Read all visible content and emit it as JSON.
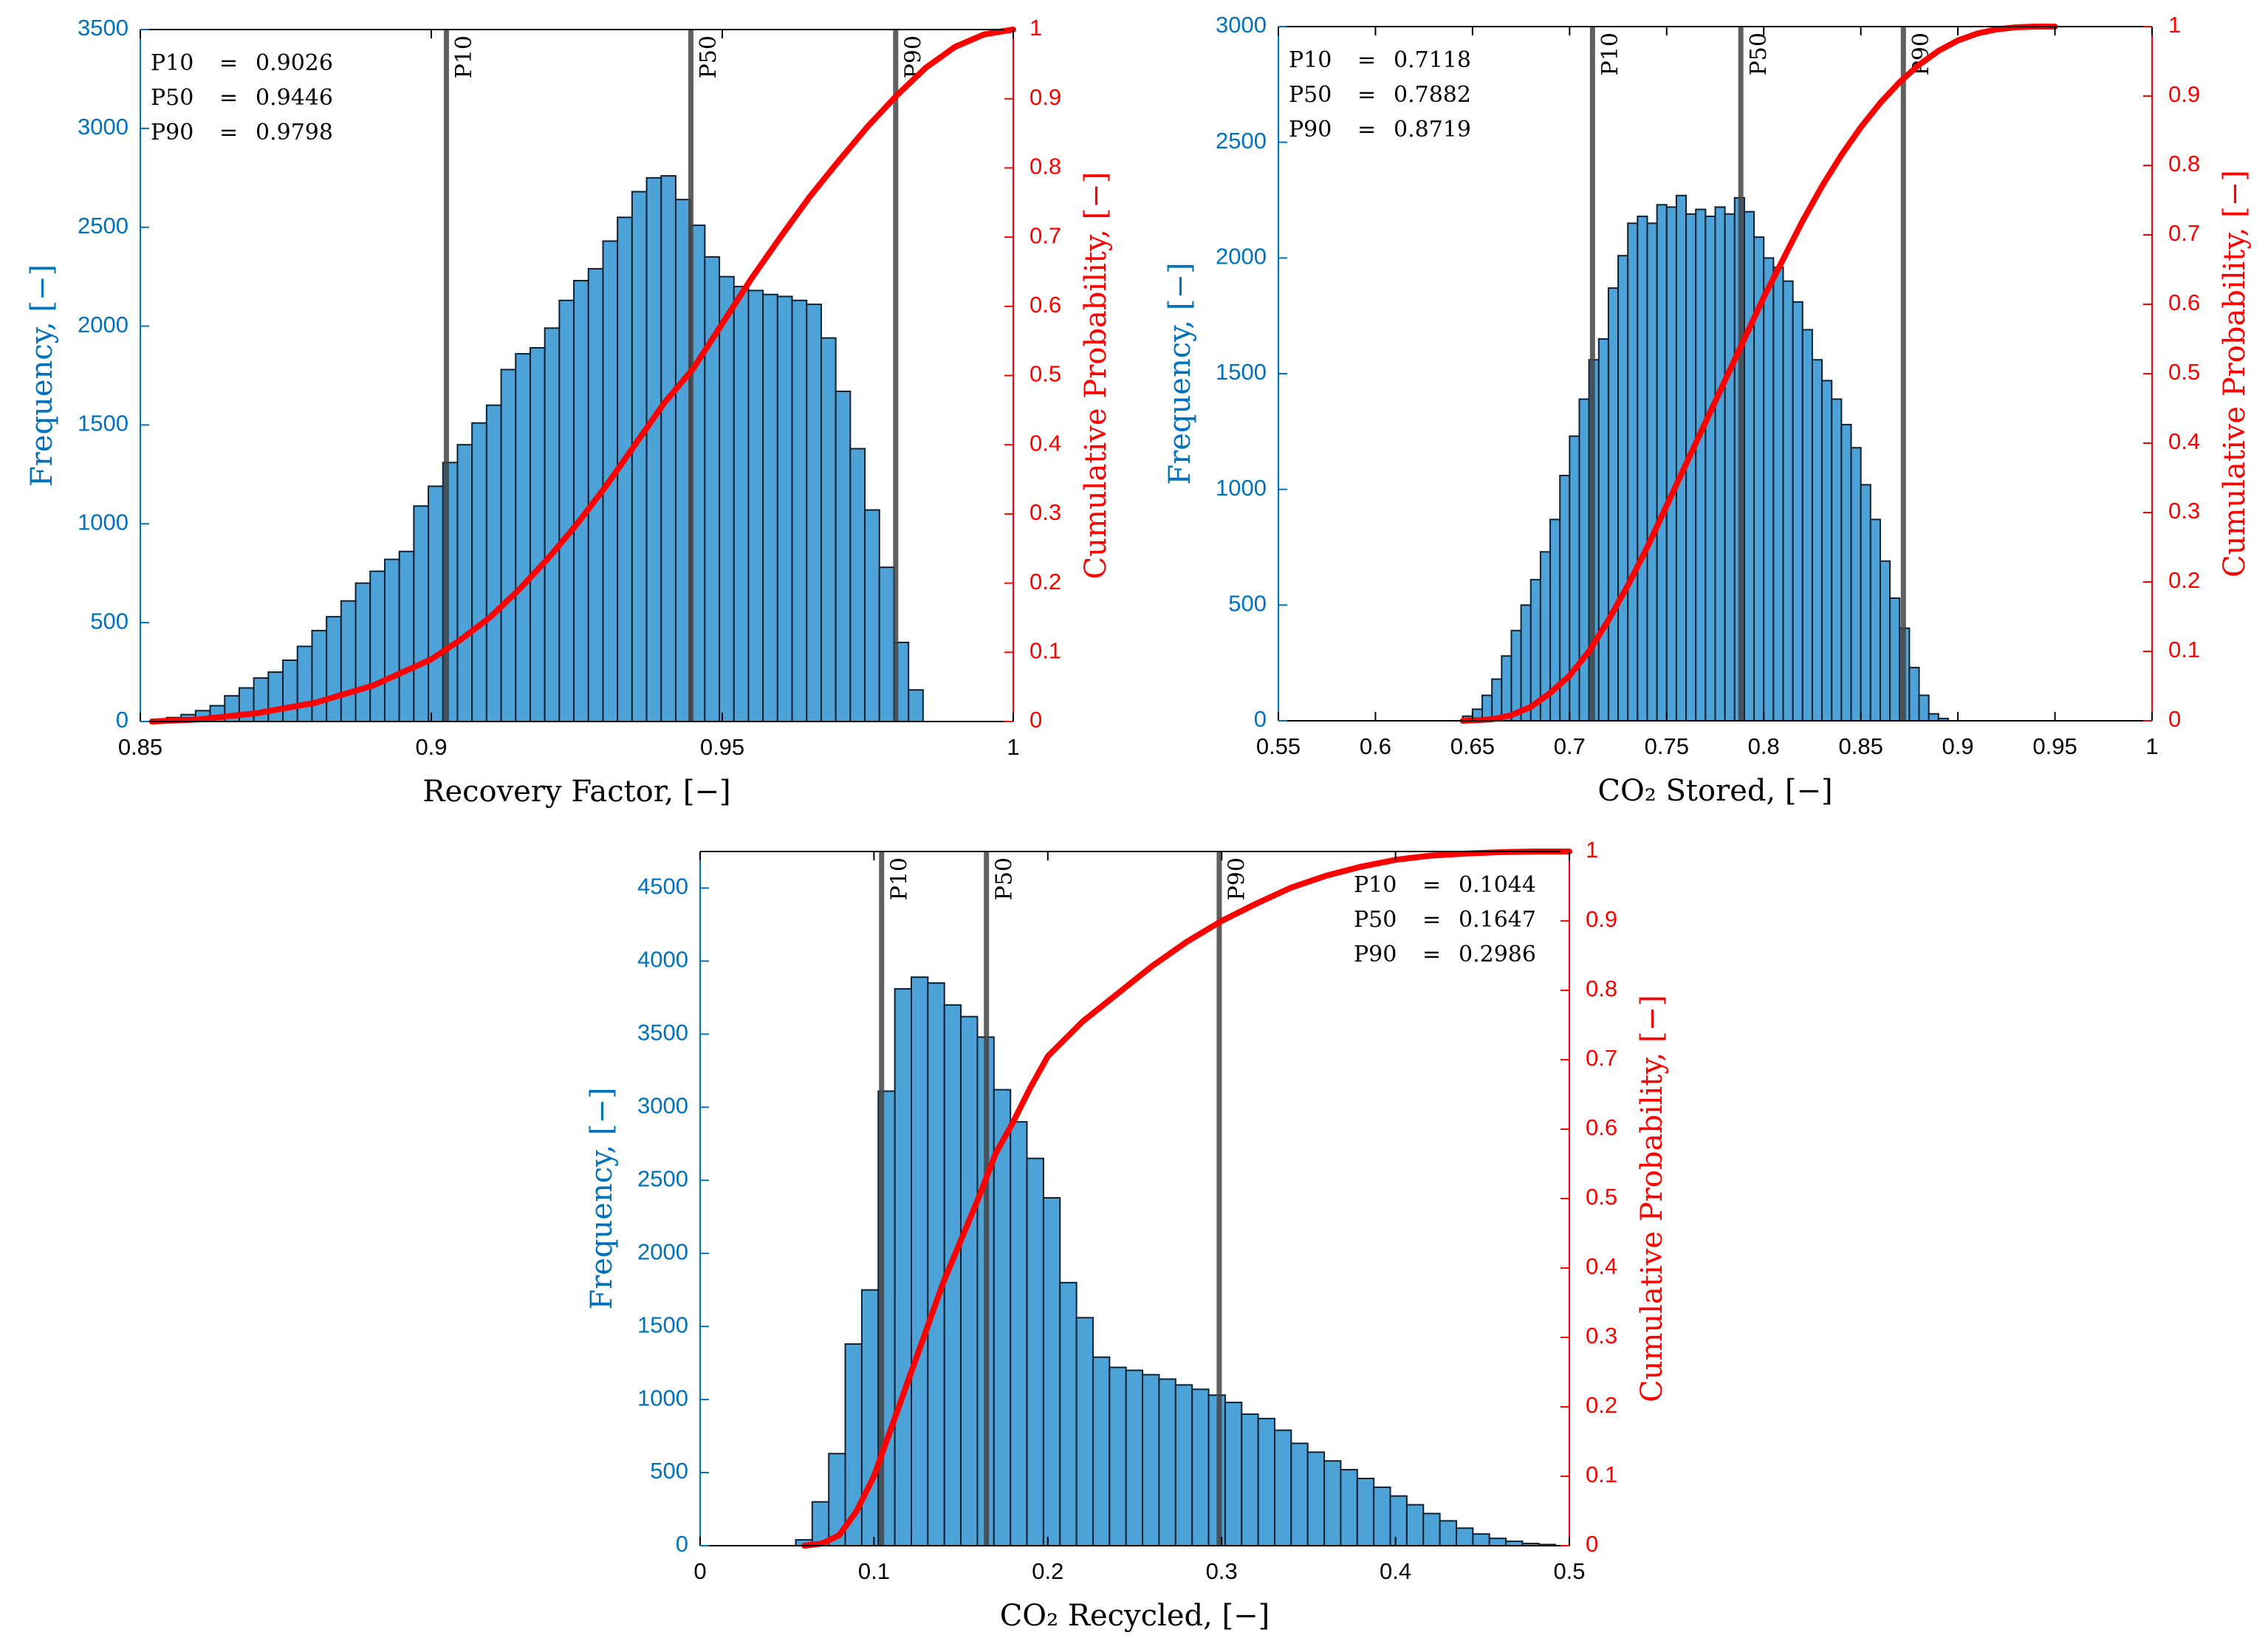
{
  "colors": {
    "bar_fill": "#4DA3D8",
    "bar_edge": "#102030",
    "freq_axis": "#0072BD",
    "cdf": "#ff0000",
    "pline": "#444444",
    "text": "#000000"
  },
  "chart_data": [
    {
      "type": "bar",
      "id": "recovery",
      "xlabel": "Recovery Factor, [−]",
      "ylabel": "Frequency, [−]",
      "y2label": "Cumulative Probability, [−]",
      "xlim": [
        0.85,
        1.0
      ],
      "ylim": [
        0,
        3500
      ],
      "y2lim": [
        0,
        1
      ],
      "xticks": [
        0.85,
        0.9,
        0.95,
        1.0
      ],
      "xtick_labels": [
        "0.85",
        "0.9",
        "0.95",
        "1"
      ],
      "yticks": [
        0,
        500,
        1000,
        1500,
        2000,
        2500,
        3000,
        3500
      ],
      "ytick_labels": [
        "0",
        "500",
        "1000",
        "1500",
        "2000",
        "2500",
        "3000",
        "3500"
      ],
      "y2ticks": [
        0,
        0.1,
        0.2,
        0.3,
        0.4,
        0.5,
        0.6,
        0.7,
        0.8,
        0.9,
        1
      ],
      "y2tick_labels": [
        "0",
        "0.1",
        "0.2",
        "0.3",
        "0.4",
        "0.5",
        "0.6",
        "0.7",
        "0.8",
        "0.9",
        "1"
      ],
      "bin_start": 0.852,
      "bin_width": 0.0025,
      "counts": [
        10,
        20,
        35,
        55,
        80,
        130,
        170,
        220,
        250,
        310,
        380,
        460,
        530,
        610,
        700,
        760,
        820,
        860,
        1090,
        1190,
        1310,
        1400,
        1510,
        1600,
        1780,
        1860,
        1890,
        1990,
        2130,
        2230,
        2290,
        2430,
        2550,
        2680,
        2750,
        2760,
        2640,
        2510,
        2350,
        2250,
        2200,
        2180,
        2160,
        2150,
        2130,
        2110,
        1940,
        1670,
        1380,
        1070,
        780,
        400,
        160
      ],
      "cdf_x": [
        0.852,
        0.86,
        0.87,
        0.88,
        0.89,
        0.9,
        0.905,
        0.91,
        0.915,
        0.92,
        0.925,
        0.93,
        0.935,
        0.94,
        0.945,
        0.95,
        0.955,
        0.96,
        0.965,
        0.97,
        0.975,
        0.98,
        0.985,
        0.99,
        0.995,
        1.0
      ],
      "cdf_y": [
        0.0,
        0.003,
        0.012,
        0.027,
        0.052,
        0.09,
        0.118,
        0.15,
        0.19,
        0.235,
        0.285,
        0.34,
        0.4,
        0.46,
        0.51,
        0.575,
        0.64,
        0.7,
        0.758,
        0.81,
        0.86,
        0.905,
        0.945,
        0.975,
        0.993,
        1.0
      ],
      "plines": [
        {
          "label": "P10",
          "x": 0.9026
        },
        {
          "label": "P50",
          "x": 0.9446
        },
        {
          "label": "P90",
          "x": 0.9798
        }
      ],
      "stats": [
        {
          "name": "P10",
          "value": "0.9026"
        },
        {
          "name": "P50",
          "value": "0.9446"
        },
        {
          "name": "P90",
          "value": "0.9798"
        }
      ],
      "stats_position": "top-left"
    },
    {
      "type": "bar",
      "id": "stored",
      "xlabel": "CO₂ Stored, [−]",
      "ylabel": "Frequency, [−]",
      "y2label": "Cumulative Probability, [−]",
      "xlim": [
        0.55,
        1.0
      ],
      "ylim": [
        0,
        3000
      ],
      "y2lim": [
        0,
        1
      ],
      "xticks": [
        0.55,
        0.6,
        0.65,
        0.7,
        0.75,
        0.8,
        0.85,
        0.9,
        0.95,
        1.0
      ],
      "xtick_labels": [
        "0.55",
        "0.6",
        "0.65",
        "0.7",
        "0.75",
        "0.8",
        "0.85",
        "0.9",
        "0.95",
        "1"
      ],
      "yticks": [
        0,
        500,
        1000,
        1500,
        2000,
        2500,
        3000
      ],
      "ytick_labels": [
        "0",
        "500",
        "1000",
        "1500",
        "2000",
        "2500",
        "3000"
      ],
      "y2ticks": [
        0,
        0.1,
        0.2,
        0.3,
        0.4,
        0.5,
        0.6,
        0.7,
        0.8,
        0.9,
        1
      ],
      "y2tick_labels": [
        "0",
        "0.1",
        "0.2",
        "0.3",
        "0.4",
        "0.5",
        "0.6",
        "0.7",
        "0.8",
        "0.9",
        "1"
      ],
      "bin_start": 0.645,
      "bin_width": 0.005,
      "counts": [
        20,
        50,
        110,
        180,
        280,
        390,
        500,
        610,
        730,
        870,
        1060,
        1230,
        1390,
        1560,
        1650,
        1870,
        2010,
        2150,
        2180,
        2150,
        2230,
        2220,
        2270,
        2190,
        2210,
        2180,
        2220,
        2190,
        2260,
        2200,
        2090,
        2000,
        1960,
        1900,
        1810,
        1690,
        1560,
        1470,
        1390,
        1280,
        1180,
        1020,
        870,
        690,
        530,
        400,
        230,
        110,
        30,
        10
      ],
      "cdf_x": [
        0.645,
        0.66,
        0.67,
        0.68,
        0.69,
        0.7,
        0.71,
        0.72,
        0.73,
        0.74,
        0.75,
        0.76,
        0.77,
        0.78,
        0.79,
        0.8,
        0.81,
        0.82,
        0.83,
        0.84,
        0.85,
        0.86,
        0.87,
        0.88,
        0.89,
        0.9,
        0.91,
        0.92,
        0.93,
        0.94,
        0.95
      ],
      "cdf_y": [
        0.0,
        0.002,
        0.008,
        0.02,
        0.04,
        0.065,
        0.1,
        0.145,
        0.195,
        0.25,
        0.31,
        0.37,
        0.43,
        0.49,
        0.55,
        0.61,
        0.665,
        0.72,
        0.77,
        0.815,
        0.855,
        0.89,
        0.92,
        0.945,
        0.965,
        0.98,
        0.99,
        0.996,
        0.999,
        1.0,
        1.0
      ],
      "plines": [
        {
          "label": "P10",
          "x": 0.7118
        },
        {
          "label": "P50",
          "x": 0.7882
        },
        {
          "label": "P90",
          "x": 0.8719
        }
      ],
      "stats": [
        {
          "name": "P10",
          "value": "0.7118"
        },
        {
          "name": "P50",
          "value": "0.7882"
        },
        {
          "name": "P90",
          "value": "0.8719"
        }
      ],
      "stats_position": "top-left"
    },
    {
      "type": "bar",
      "id": "recycled",
      "xlabel": "CO₂ Recycled, [−]",
      "ylabel": "Frequency, [−]",
      "y2label": "Cumulative Probability, [−]",
      "xlim": [
        0,
        0.5
      ],
      "ylim": [
        0,
        4750
      ],
      "y2lim": [
        0,
        1
      ],
      "xticks": [
        0,
        0.1,
        0.2,
        0.3,
        0.4,
        0.5
      ],
      "xtick_labels": [
        "0",
        "0.1",
        "0.2",
        "0.3",
        "0.4",
        "0.5"
      ],
      "yticks": [
        0,
        500,
        1000,
        1500,
        2000,
        2500,
        3000,
        3500,
        4000,
        4500
      ],
      "ytick_labels": [
        "0",
        "500",
        "1000",
        "1500",
        "2000",
        "2500",
        "3000",
        "3500",
        "4000",
        "4500"
      ],
      "y2ticks": [
        0,
        0.1,
        0.2,
        0.3,
        0.4,
        0.5,
        0.6,
        0.7,
        0.8,
        0.9,
        1
      ],
      "y2tick_labels": [
        "0",
        "0.1",
        "0.2",
        "0.3",
        "0.4",
        "0.5",
        "0.6",
        "0.7",
        "0.8",
        "0.9",
        "1"
      ],
      "bin_start": 0.055,
      "bin_width": 0.0095,
      "counts": [
        40,
        300,
        630,
        1380,
        1750,
        3110,
        3810,
        3890,
        3850,
        3700,
        3620,
        3480,
        3120,
        2900,
        2650,
        2380,
        1800,
        1560,
        1290,
        1220,
        1200,
        1170,
        1140,
        1100,
        1070,
        1030,
        980,
        900,
        870,
        790,
        700,
        640,
        580,
        520,
        460,
        400,
        340,
        280,
        220,
        170,
        120,
        80,
        50,
        30,
        15,
        8
      ],
      "cdf_x": [
        0.06,
        0.07,
        0.08,
        0.09,
        0.1,
        0.11,
        0.12,
        0.13,
        0.14,
        0.15,
        0.16,
        0.17,
        0.18,
        0.19,
        0.2,
        0.22,
        0.24,
        0.26,
        0.28,
        0.3,
        0.32,
        0.34,
        0.36,
        0.38,
        0.4,
        0.42,
        0.44,
        0.46,
        0.48,
        0.5
      ],
      "cdf_y": [
        0.0,
        0.003,
        0.015,
        0.05,
        0.1,
        0.17,
        0.24,
        0.31,
        0.38,
        0.44,
        0.5,
        0.565,
        0.61,
        0.66,
        0.705,
        0.755,
        0.795,
        0.835,
        0.87,
        0.9,
        0.925,
        0.948,
        0.965,
        0.978,
        0.988,
        0.994,
        0.997,
        0.999,
        1.0,
        1.0
      ],
      "plines": [
        {
          "label": "P10",
          "x": 0.1044
        },
        {
          "label": "P50",
          "x": 0.1647
        },
        {
          "label": "P90",
          "x": 0.2986
        }
      ],
      "stats": [
        {
          "name": "P10",
          "value": "0.1044"
        },
        {
          "name": "P50",
          "value": "0.1647"
        },
        {
          "name": "P90",
          "value": "0.2986"
        }
      ],
      "stats_position": "top-right"
    }
  ]
}
